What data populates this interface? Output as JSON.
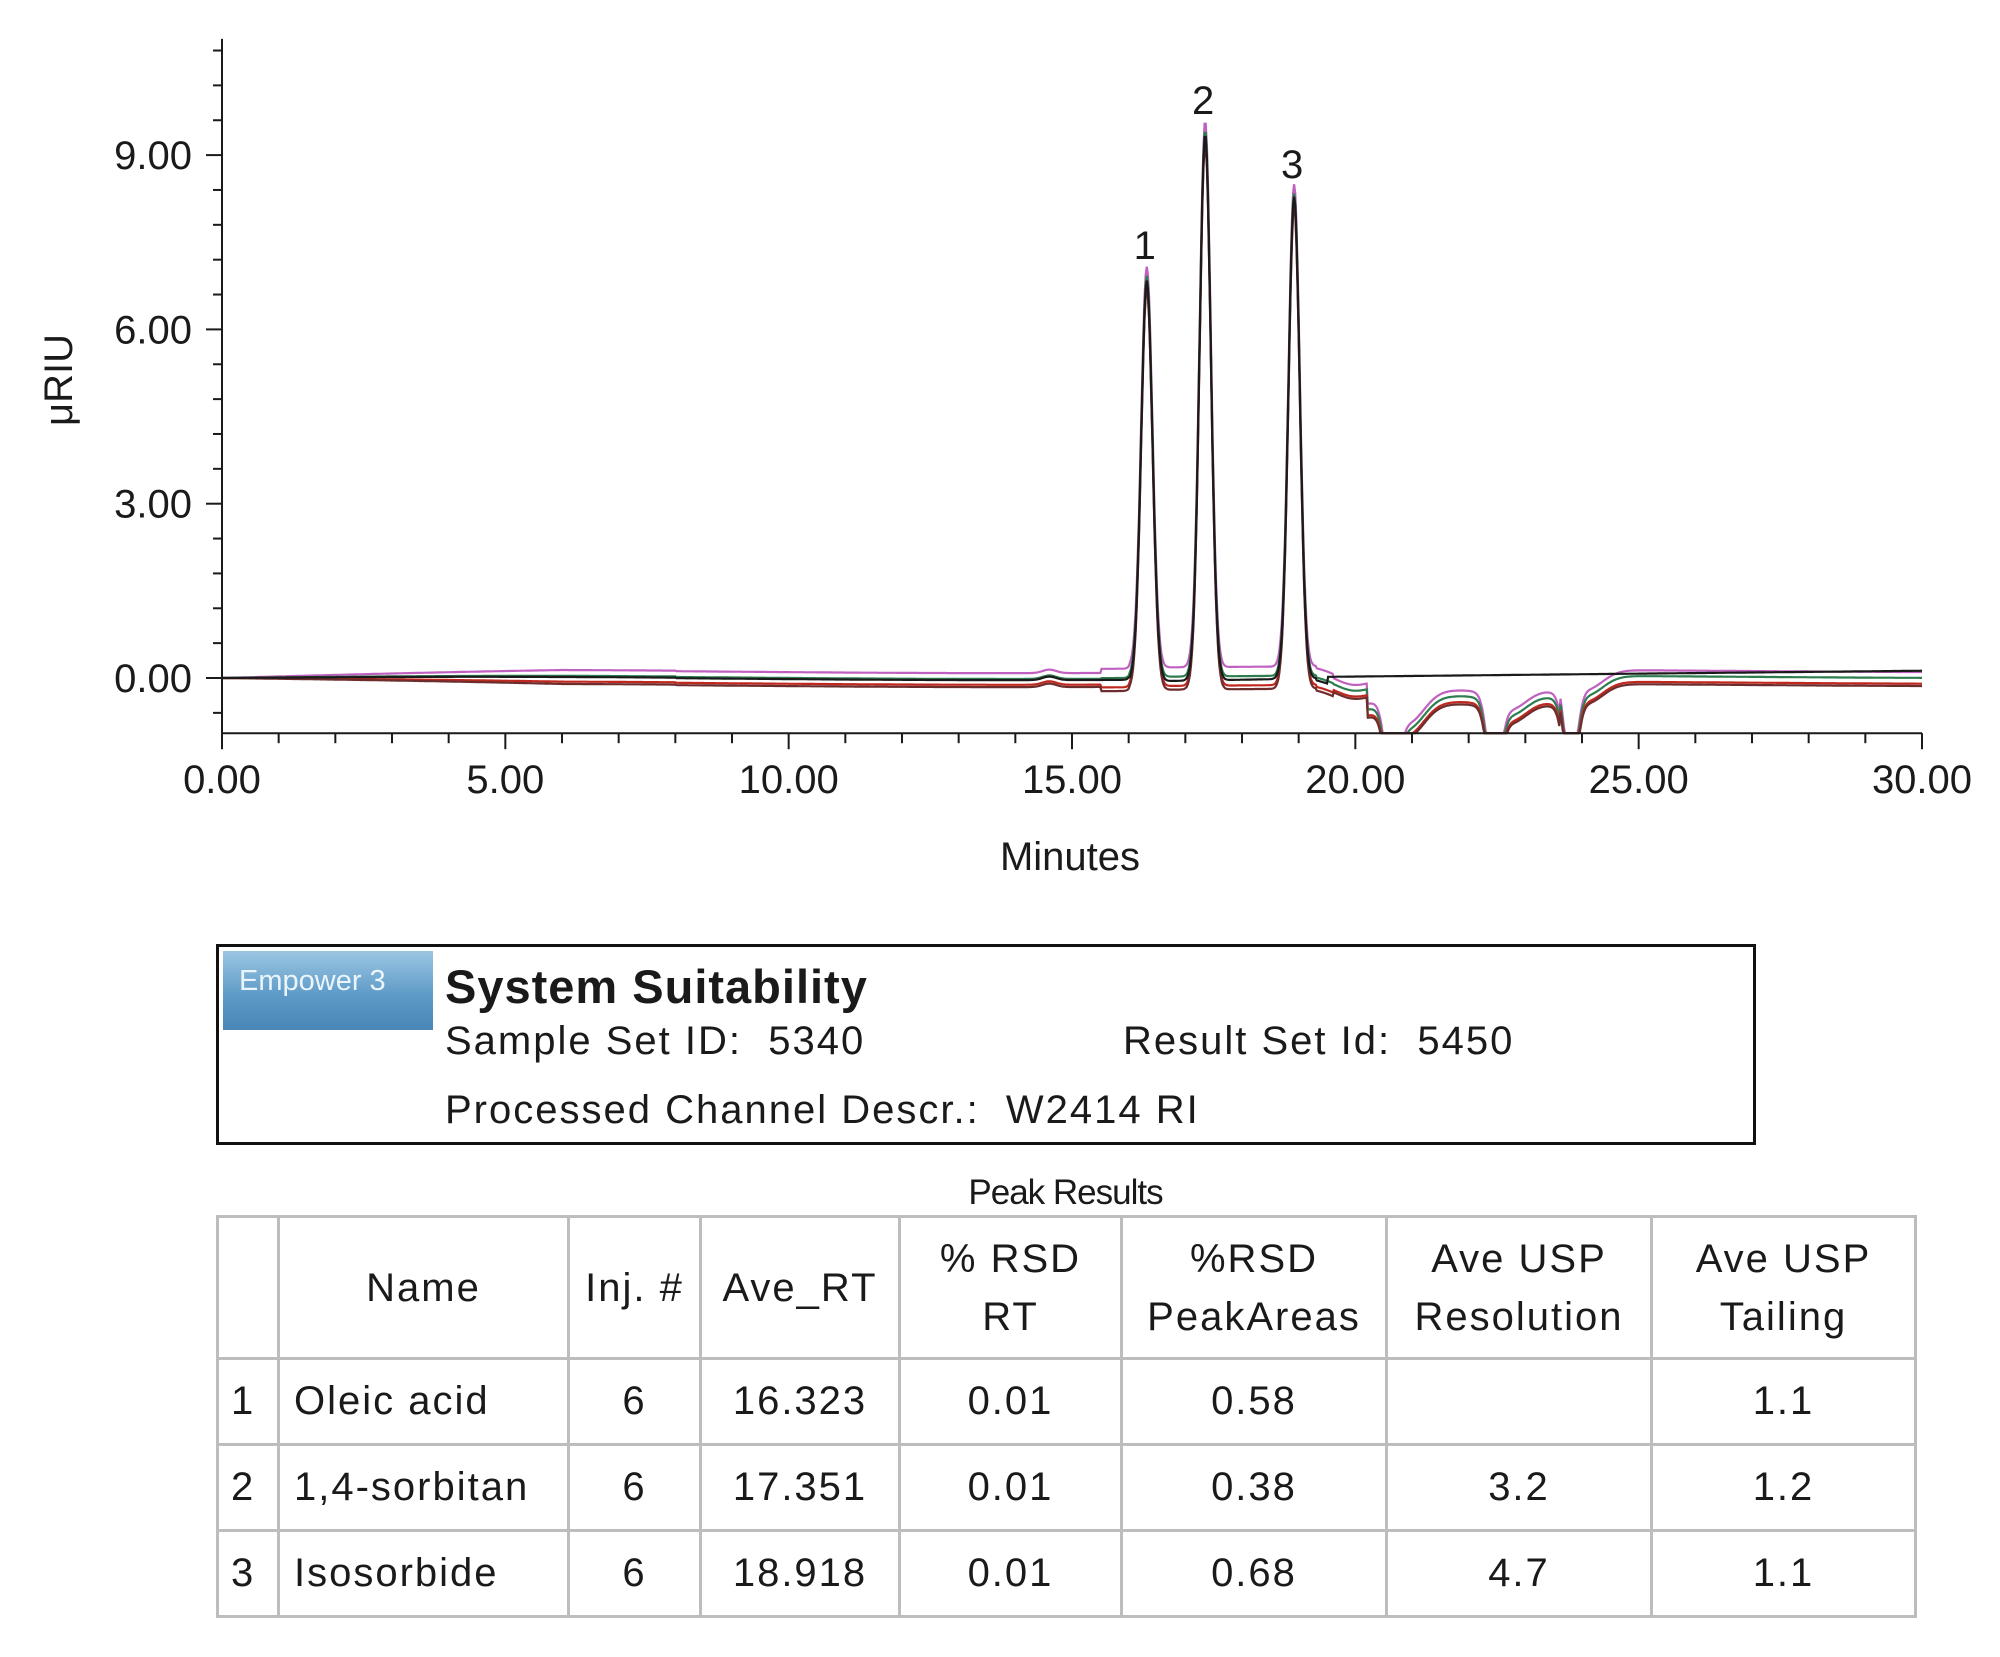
{
  "chart_data": {
    "type": "line",
    "xlabel": "Minutes",
    "ylabel": "μRIU",
    "xlim": [
      0,
      30
    ],
    "ylim": [
      -0.95,
      11.0
    ],
    "x_ticks": [
      "0.00",
      "5.00",
      "10.00",
      "15.00",
      "20.00",
      "25.00",
      "30.00"
    ],
    "y_ticks": [
      "0.00",
      "3.00",
      "6.00",
      "9.00"
    ],
    "grid": false,
    "peaks": [
      {
        "label": "1",
        "x": 16.32,
        "y": 6.9
      },
      {
        "label": "2",
        "x": 17.35,
        "y": 9.4
      },
      {
        "label": "3",
        "x": 18.92,
        "y": 8.3
      }
    ],
    "dips": [
      {
        "x": 20.65,
        "y": -0.95
      },
      {
        "x": 22.45,
        "y": -0.95
      },
      {
        "x": 23.8,
        "y": -0.95
      }
    ],
    "series_colors": [
      "#c060c0",
      "#2e7d4f",
      "#c0281f",
      "#6d2d2d",
      "#1a1a1a"
    ],
    "series_baseline_shift": [
      0.12,
      0.02,
      -0.08,
      -0.12,
      0.0
    ]
  },
  "info": {
    "logo_text": "Empower 3",
    "title": "System Suitability",
    "sample_set": "Sample Set ID:  5340",
    "result_set": "Result Set Id:  5450",
    "channel": "Processed Channel Descr.:  W2414 RI"
  },
  "table": {
    "caption": "Peak Results",
    "headers": [
      "",
      "Name",
      "Inj. #",
      "Ave_RT",
      "% RSD\nRT",
      "%RSD\nPeakAreas",
      "Ave USP\nResolution",
      "Ave USP\nTailing"
    ],
    "rows": [
      [
        "1",
        "Oleic acid",
        "6",
        "16.323",
        "0.01",
        "0.58",
        "",
        "1.1"
      ],
      [
        "2",
        "1,4-sorbitan",
        "6",
        "17.351",
        "0.01",
        "0.38",
        "3.2",
        "1.2"
      ],
      [
        "3",
        "Isosorbide",
        "6",
        "18.918",
        "0.01",
        "0.68",
        "4.7",
        "1.1"
      ]
    ]
  }
}
